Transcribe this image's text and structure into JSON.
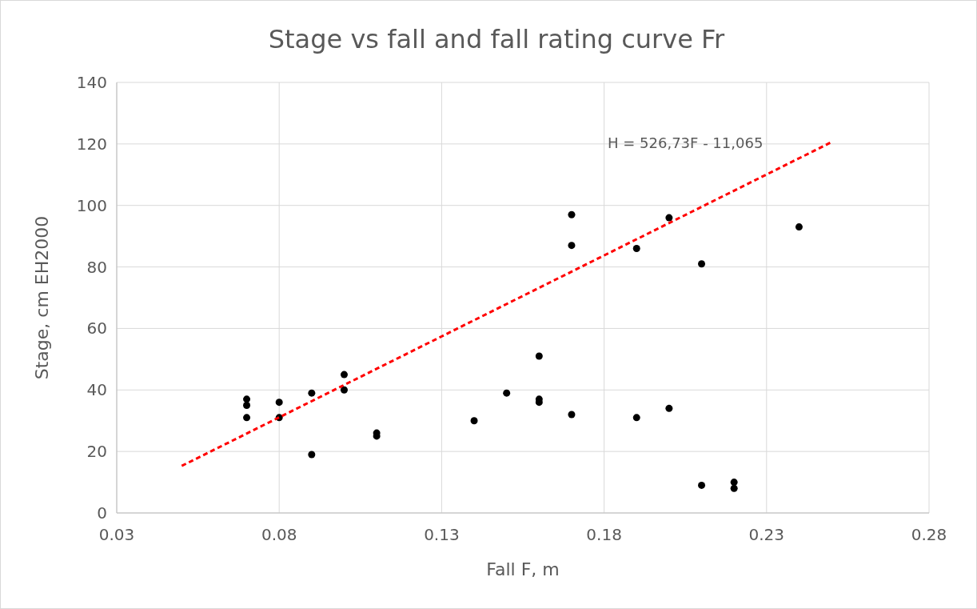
{
  "chart_data": {
    "type": "scatter",
    "title": "Stage vs fall and fall rating curve Fr",
    "xlabel": "Fall F, m",
    "ylabel": "Stage, cm EH2000",
    "xlim": [
      0.03,
      0.28
    ],
    "xticks": [
      0.03,
      0.08,
      0.13,
      0.18,
      0.23,
      0.28
    ],
    "ylim": [
      0,
      140
    ],
    "yticks": [
      0,
      20,
      40,
      60,
      80,
      100,
      120,
      140
    ],
    "grid": true,
    "series": [
      {
        "marker": "circle",
        "color": "#000000",
        "x": [
          0.07,
          0.07,
          0.07,
          0.08,
          0.08,
          0.09,
          0.09,
          0.1,
          0.1,
          0.11,
          0.11,
          0.14,
          0.15,
          0.16,
          0.16,
          0.16,
          0.17,
          0.17,
          0.17,
          0.19,
          0.19,
          0.2,
          0.2,
          0.21,
          0.21,
          0.22,
          0.22,
          0.24
        ],
        "values": [
          37,
          35,
          31,
          36,
          31,
          39,
          19,
          45,
          40,
          26,
          25,
          30,
          39,
          51,
          37,
          36,
          97,
          87,
          32,
          86,
          31,
          96,
          34,
          81,
          9,
          10,
          8,
          93
        ]
      },
      {
        "type": "line",
        "color": "#ff0000",
        "line_style": "dashed",
        "x": [
          0.05,
          0.25
        ],
        "values": [
          15.3,
          120.6
        ]
      }
    ],
    "annotations": [
      "H = 526,73F - 11,065"
    ]
  }
}
